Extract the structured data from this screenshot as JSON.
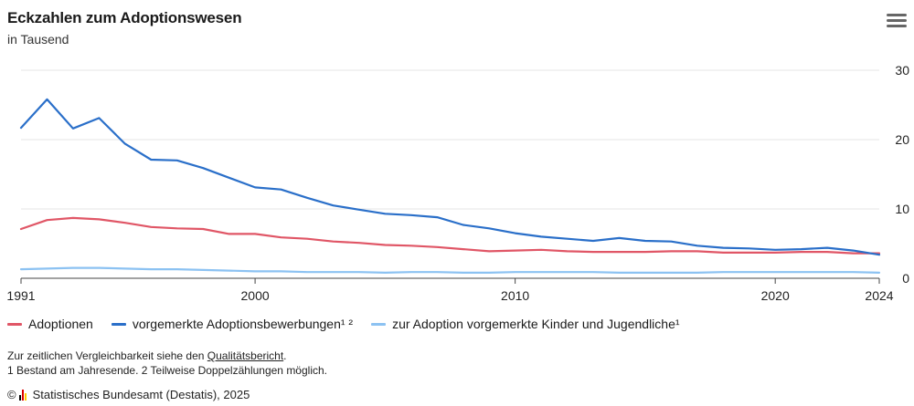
{
  "chart": {
    "title": "Eckzahlen zum Adoptionswesen",
    "subtitle": "in Tausend"
  },
  "menu_icon": "hamburger-menu-icon",
  "notes": {
    "line1_prefix": "Zur zeitlichen Vergleichbarkeit siehe den ",
    "line1_link": "Qualitätsbericht",
    "line1_suffix": ".",
    "line2": "1 Bestand am Jahresende. 2 Teilweise Doppelzählungen möglich."
  },
  "source": {
    "copyright_symbol": "©",
    "text": "Statistisches Bundesamt (Destatis), 2025",
    "logo_colors": [
      "#000000",
      "#dd0000",
      "#ffcc00"
    ]
  },
  "colors": {
    "adoptionen": "#e05666",
    "bewerbungen": "#2a6fc9",
    "kinder": "#8cc2f2",
    "grid": "#e6e6e6",
    "axis": "#444444"
  },
  "chart_data": {
    "type": "line",
    "title": "Eckzahlen zum Adoptionswesen",
    "subtitle": "in Tausend",
    "x": [
      1991,
      1992,
      1993,
      1994,
      1995,
      1996,
      1997,
      1998,
      1999,
      2000,
      2001,
      2002,
      2003,
      2004,
      2005,
      2006,
      2007,
      2008,
      2009,
      2010,
      2011,
      2012,
      2013,
      2014,
      2015,
      2016,
      2017,
      2018,
      2019,
      2020,
      2021,
      2022,
      2023,
      2024
    ],
    "xticks": [
      "1991",
      "2000",
      "2010",
      "2020",
      "2024"
    ],
    "yticks": [
      "0",
      "10",
      "20",
      "30"
    ],
    "ylim": [
      0,
      30
    ],
    "grid": true,
    "legend_position": "bottom",
    "series": [
      {
        "name": "Adoptionen",
        "color": "#e05666",
        "values": [
          7.1,
          8.4,
          8.7,
          8.5,
          8.0,
          7.4,
          7.2,
          7.1,
          6.4,
          6.4,
          5.9,
          5.7,
          5.3,
          5.1,
          4.8,
          4.7,
          4.5,
          4.2,
          3.9,
          4.0,
          4.1,
          3.9,
          3.8,
          3.8,
          3.8,
          3.9,
          3.9,
          3.7,
          3.7,
          3.7,
          3.8,
          3.8,
          3.6,
          3.6
        ]
      },
      {
        "name": "vorgemerkte Adoptionsbewerbungen¹ ²",
        "color": "#2a6fc9",
        "values": [
          21.7,
          25.8,
          21.6,
          23.1,
          19.4,
          17.1,
          17.0,
          15.9,
          14.5,
          13.1,
          12.8,
          11.6,
          10.5,
          9.9,
          9.3,
          9.1,
          8.8,
          7.7,
          7.2,
          6.5,
          6.0,
          5.7,
          5.4,
          5.8,
          5.4,
          5.3,
          4.7,
          4.4,
          4.3,
          4.1,
          4.2,
          4.4,
          4.0,
          3.4
        ]
      },
      {
        "name": "zur Adoption vorgemerkte Kinder und Jugendliche¹",
        "color": "#8cc2f2",
        "values": [
          1.3,
          1.4,
          1.5,
          1.5,
          1.4,
          1.3,
          1.3,
          1.2,
          1.1,
          1.0,
          1.0,
          0.9,
          0.9,
          0.9,
          0.8,
          0.9,
          0.9,
          0.8,
          0.8,
          0.9,
          0.9,
          0.9,
          0.9,
          0.8,
          0.8,
          0.8,
          0.8,
          0.9,
          0.9,
          0.9,
          0.9,
          0.9,
          0.9,
          0.8
        ]
      }
    ]
  }
}
